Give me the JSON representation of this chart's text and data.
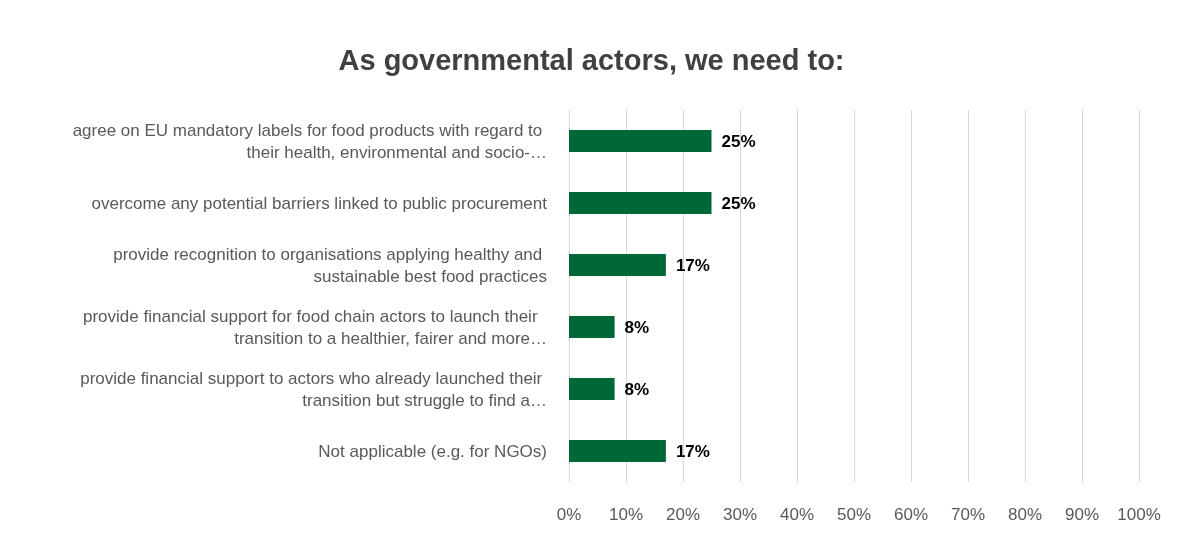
{
  "chart_data": {
    "type": "bar",
    "orientation": "horizontal",
    "title": "As governmental actors, we need to:",
    "categories": [
      "agree on EU mandatory labels for food products with regard to their health, environmental and socio-…",
      "overcome any potential barriers linked to public procurement",
      "provide recognition to organisations applying healthy and sustainable best food practices",
      "provide financial support for food chain actors to launch their  transition to a healthier, fairer and more…",
      "provide financial support to actors who already launched their transition but struggle to find a…",
      "Not applicable (e.g. for NGOs)"
    ],
    "values": [
      25,
      25,
      17,
      8,
      8,
      17
    ],
    "value_labels": [
      "25%",
      "25%",
      "17%",
      "8%",
      "8%",
      "17%"
    ],
    "color": "#006837",
    "xlim": [
      0,
      100
    ],
    "xticks": [
      {
        "value": 0,
        "label": "0%"
      },
      {
        "value": 10,
        "label": "10%"
      },
      {
        "value": 20,
        "label": "20%"
      },
      {
        "value": 30,
        "label": "30%"
      },
      {
        "value": 40,
        "label": "40%"
      },
      {
        "value": 50,
        "label": "50%"
      },
      {
        "value": 60,
        "label": "60%"
      },
      {
        "value": 70,
        "label": "70%"
      },
      {
        "value": 80,
        "label": "80%"
      },
      {
        "value": 90,
        "label": "90%"
      },
      {
        "value": 100,
        "label": "100%"
      }
    ],
    "grid": "x"
  }
}
